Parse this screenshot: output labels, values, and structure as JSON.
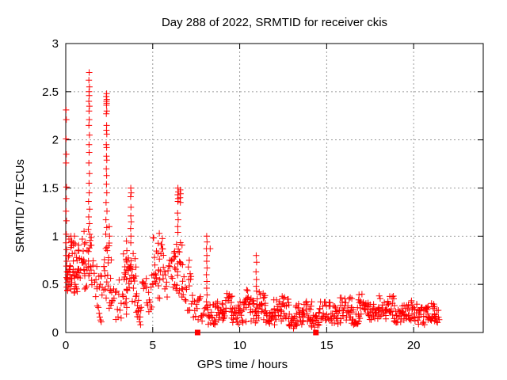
{
  "window": {
    "title": "Day 288 of 2022, SRMTID for receiver ckis"
  },
  "chart_data": {
    "type": "scatter",
    "title": "Day 288 of 2022, SRMTID for receiver ckis",
    "xlabel": "GPS time / hours",
    "ylabel": "SRMTID / TECUs",
    "xlim": [
      0,
      24
    ],
    "ylim": [
      0,
      3
    ],
    "xticks": [
      0,
      5,
      10,
      15,
      20
    ],
    "yticks": [
      0,
      0.5,
      1,
      1.5,
      2,
      2.5,
      3
    ],
    "grid": "dotted",
    "legend": "none",
    "marker": "plus",
    "data_end_hour": 21.45,
    "colors": {
      "points": "#ff0000",
      "grid": "#9c9c9c",
      "axis": "#000000",
      "text": "#000000",
      "background": "#ffffff"
    },
    "zero_markers": [
      [
        7.58,
        0.0
      ],
      [
        14.38,
        0.0
      ]
    ],
    "feature_points": {
      "axis_column_0h": [
        [
          0.02,
          2.31
        ],
        [
          0.03,
          2.21
        ],
        [
          0.02,
          2.01
        ],
        [
          0.03,
          1.85
        ],
        [
          0.02,
          1.76
        ],
        [
          0.04,
          1.51
        ],
        [
          0.03,
          1.39
        ],
        [
          0.02,
          1.26
        ],
        [
          0.04,
          1.16
        ],
        [
          0.03,
          1.02
        ],
        [
          0.02,
          0.93
        ],
        [
          0.05,
          0.86
        ],
        [
          0.03,
          0.8
        ],
        [
          0.06,
          0.74
        ],
        [
          0.04,
          0.69
        ],
        [
          0.07,
          0.63
        ],
        [
          0.05,
          0.57
        ],
        [
          0.08,
          0.52
        ],
        [
          0.06,
          0.47
        ],
        [
          0.1,
          0.55
        ],
        [
          0.12,
          0.6
        ],
        [
          0.09,
          0.44
        ]
      ],
      "spike_1_3h": [
        [
          1.35,
          2.7
        ],
        [
          1.33,
          2.62
        ],
        [
          1.36,
          2.55
        ],
        [
          1.34,
          2.5
        ],
        [
          1.35,
          2.46
        ],
        [
          1.33,
          2.4
        ],
        [
          1.36,
          2.35
        ],
        [
          1.34,
          2.3
        ],
        [
          1.35,
          2.21
        ],
        [
          1.33,
          2.15
        ],
        [
          1.36,
          2.05
        ],
        [
          1.34,
          1.95
        ],
        [
          1.35,
          1.87
        ],
        [
          1.33,
          1.76
        ],
        [
          1.36,
          1.65
        ],
        [
          1.34,
          1.55
        ],
        [
          1.35,
          1.45
        ],
        [
          1.31,
          1.36
        ],
        [
          1.37,
          1.28
        ],
        [
          1.32,
          1.2
        ],
        [
          1.36,
          1.13
        ],
        [
          1.3,
          1.07
        ],
        [
          1.38,
          1.02
        ]
      ],
      "spike_2_3h": [
        [
          2.35,
          2.48
        ],
        [
          2.33,
          2.45
        ],
        [
          2.36,
          2.42
        ],
        [
          2.34,
          2.4
        ],
        [
          2.35,
          2.38
        ],
        [
          2.34,
          2.36
        ],
        [
          2.36,
          2.3
        ],
        [
          2.33,
          2.27
        ],
        [
          2.35,
          2.15
        ],
        [
          2.34,
          2.1
        ],
        [
          2.36,
          2.06
        ],
        [
          2.33,
          1.95
        ],
        [
          2.35,
          1.92
        ],
        [
          2.34,
          1.83
        ],
        [
          2.36,
          1.79
        ],
        [
          2.33,
          1.7
        ],
        [
          2.35,
          1.63
        ],
        [
          2.34,
          1.54
        ],
        [
          2.36,
          1.45
        ],
        [
          2.32,
          1.35
        ],
        [
          2.37,
          1.26
        ],
        [
          2.31,
          1.17
        ],
        [
          2.36,
          1.09
        ],
        [
          2.3,
          1.02
        ]
      ],
      "descender_1_9h": [
        [
          1.92,
          0.2
        ],
        [
          1.96,
          0.16
        ],
        [
          2.0,
          0.13
        ],
        [
          2.04,
          0.11
        ]
      ],
      "column_3_5h": [
        [
          3.49,
          0.95
        ],
        [
          3.51,
          0.85
        ],
        [
          3.48,
          0.75
        ],
        [
          3.5,
          0.65
        ],
        [
          3.49,
          0.55
        ],
        [
          3.51,
          0.45
        ],
        [
          3.48,
          0.35
        ],
        [
          3.5,
          0.26
        ],
        [
          3.49,
          0.19
        ]
      ],
      "spike_3_7h": [
        [
          3.74,
          1.5
        ],
        [
          3.76,
          1.45
        ],
        [
          3.73,
          1.41
        ],
        [
          3.75,
          1.3
        ],
        [
          3.74,
          1.21
        ],
        [
          3.76,
          1.15
        ],
        [
          3.73,
          1.08
        ],
        [
          3.75,
          1.0
        ],
        [
          3.74,
          0.93
        ]
      ],
      "descender_4_2h": [
        [
          4.12,
          0.28
        ],
        [
          4.16,
          0.22
        ],
        [
          4.2,
          0.16
        ],
        [
          4.25,
          0.11
        ],
        [
          4.3,
          0.08
        ]
      ],
      "spike_6_5h": [
        [
          6.45,
          1.5
        ],
        [
          6.47,
          1.46
        ],
        [
          6.44,
          1.43
        ],
        [
          6.46,
          1.39
        ],
        [
          6.45,
          1.36
        ],
        [
          6.58,
          1.48
        ],
        [
          6.6,
          1.44
        ],
        [
          6.57,
          1.4
        ],
        [
          6.59,
          1.35
        ],
        [
          6.43,
          1.24
        ],
        [
          6.46,
          1.17
        ],
        [
          6.44,
          1.1
        ],
        [
          6.45,
          1.04
        ]
      ],
      "column_7_1h": [
        [
          7.05,
          0.68
        ],
        [
          7.1,
          0.75
        ],
        [
          7.15,
          0.61
        ],
        [
          7.08,
          0.55
        ]
      ],
      "column_8_1h": [
        [
          8.1,
          1.0
        ],
        [
          8.12,
          0.94
        ],
        [
          8.09,
          0.87
        ],
        [
          8.11,
          0.8
        ],
        [
          8.1,
          0.74
        ],
        [
          8.12,
          0.67
        ],
        [
          8.09,
          0.6
        ],
        [
          8.11,
          0.53
        ],
        [
          8.1,
          0.46
        ],
        [
          8.12,
          0.39
        ],
        [
          8.09,
          0.32
        ],
        [
          8.11,
          0.26
        ]
      ],
      "streak_10_9h": [
        [
          10.95,
          0.8
        ],
        [
          10.97,
          0.73
        ],
        [
          10.94,
          0.63
        ],
        [
          10.96,
          0.55
        ],
        [
          10.95,
          0.48
        ],
        [
          10.97,
          0.43
        ]
      ],
      "outliers": [
        [
          0.18,
          0.97
        ],
        [
          0.3,
          1.0
        ],
        [
          0.35,
          0.95
        ],
        [
          0.5,
          1.0
        ],
        [
          0.95,
          0.97
        ],
        [
          1.05,
          1.05
        ],
        [
          2.48,
          0.9
        ],
        [
          2.5,
          1.1
        ],
        [
          2.52,
          1.0
        ],
        [
          5.38,
          1.03
        ],
        [
          8.3,
          0.87
        ],
        [
          11.12,
          0.42
        ]
      ]
    },
    "noise_bands_format": "[x_start, x_end, y_min, y_max, x_step, points_per_step] — density envelopes estimated from the dense scatter",
    "noise_bands": [
      [
        0.13,
        0.76,
        0.4,
        0.95,
        0.06,
        3
      ],
      [
        0.13,
        0.76,
        0.45,
        0.66,
        0.07,
        2
      ],
      [
        0.78,
        1.1,
        0.38,
        0.85,
        0.07,
        2
      ],
      [
        1.05,
        1.5,
        0.45,
        1.0,
        0.06,
        3
      ],
      [
        1.5,
        1.82,
        0.3,
        0.75,
        0.07,
        2
      ],
      [
        1.82,
        2.14,
        0.14,
        0.6,
        0.07,
        2
      ],
      [
        2.18,
        2.62,
        0.25,
        0.95,
        0.06,
        3
      ],
      [
        2.62,
        3.22,
        0.12,
        0.55,
        0.08,
        2
      ],
      [
        3.28,
        4.1,
        0.28,
        0.85,
        0.06,
        3
      ],
      [
        4.1,
        4.4,
        0.08,
        0.35,
        0.08,
        2
      ],
      [
        4.4,
        5.05,
        0.2,
        0.62,
        0.07,
        2
      ],
      [
        5.05,
        5.62,
        0.35,
        1.0,
        0.06,
        3
      ],
      [
        5.62,
        6.25,
        0.35,
        0.78,
        0.07,
        2
      ],
      [
        6.25,
        6.75,
        0.35,
        0.95,
        0.06,
        3
      ],
      [
        6.78,
        7.32,
        0.2,
        0.6,
        0.08,
        2
      ],
      [
        7.32,
        7.76,
        0.12,
        0.38,
        0.08,
        2
      ],
      [
        7.78,
        8.06,
        0.1,
        0.26,
        0.08,
        2
      ],
      [
        8.15,
        8.65,
        0.08,
        0.3,
        0.08,
        3
      ],
      [
        8.65,
        9.05,
        0.1,
        0.33,
        0.08,
        3
      ],
      [
        9.05,
        9.55,
        0.14,
        0.43,
        0.08,
        3
      ],
      [
        9.55,
        9.95,
        0.07,
        0.26,
        0.08,
        3
      ],
      [
        9.95,
        10.35,
        0.1,
        0.32,
        0.08,
        3
      ],
      [
        10.35,
        10.65,
        0.16,
        0.46,
        0.08,
        3
      ],
      [
        10.65,
        11.0,
        0.1,
        0.36,
        0.08,
        3
      ],
      [
        11.0,
        11.5,
        0.12,
        0.43,
        0.08,
        3
      ],
      [
        11.5,
        12.0,
        0.06,
        0.26,
        0.08,
        3
      ],
      [
        12.0,
        12.45,
        0.1,
        0.36,
        0.08,
        3
      ],
      [
        12.45,
        12.85,
        0.12,
        0.38,
        0.08,
        3
      ],
      [
        12.85,
        13.25,
        0.04,
        0.18,
        0.08,
        3
      ],
      [
        13.25,
        13.65,
        0.08,
        0.3,
        0.08,
        3
      ],
      [
        13.65,
        14.15,
        0.1,
        0.34,
        0.08,
        3
      ],
      [
        14.15,
        14.6,
        0.05,
        0.22,
        0.08,
        3
      ],
      [
        14.6,
        15.2,
        0.1,
        0.33,
        0.08,
        3
      ],
      [
        15.2,
        15.8,
        0.08,
        0.28,
        0.08,
        3
      ],
      [
        15.8,
        16.45,
        0.12,
        0.38,
        0.08,
        3
      ],
      [
        16.45,
        16.85,
        0.08,
        0.26,
        0.08,
        3
      ],
      [
        16.85,
        17.45,
        0.14,
        0.4,
        0.08,
        3
      ],
      [
        17.45,
        18.05,
        0.1,
        0.3,
        0.08,
        3
      ],
      [
        18.05,
        18.9,
        0.14,
        0.38,
        0.08,
        3
      ],
      [
        18.9,
        19.45,
        0.1,
        0.28,
        0.08,
        3
      ],
      [
        19.45,
        20.3,
        0.12,
        0.35,
        0.08,
        3
      ],
      [
        20.3,
        20.7,
        0.08,
        0.26,
        0.08,
        3
      ],
      [
        20.7,
        21.2,
        0.12,
        0.32,
        0.08,
        3
      ],
      [
        21.2,
        21.45,
        0.1,
        0.24,
        0.08,
        3
      ]
    ],
    "prng_seed": 7
  }
}
